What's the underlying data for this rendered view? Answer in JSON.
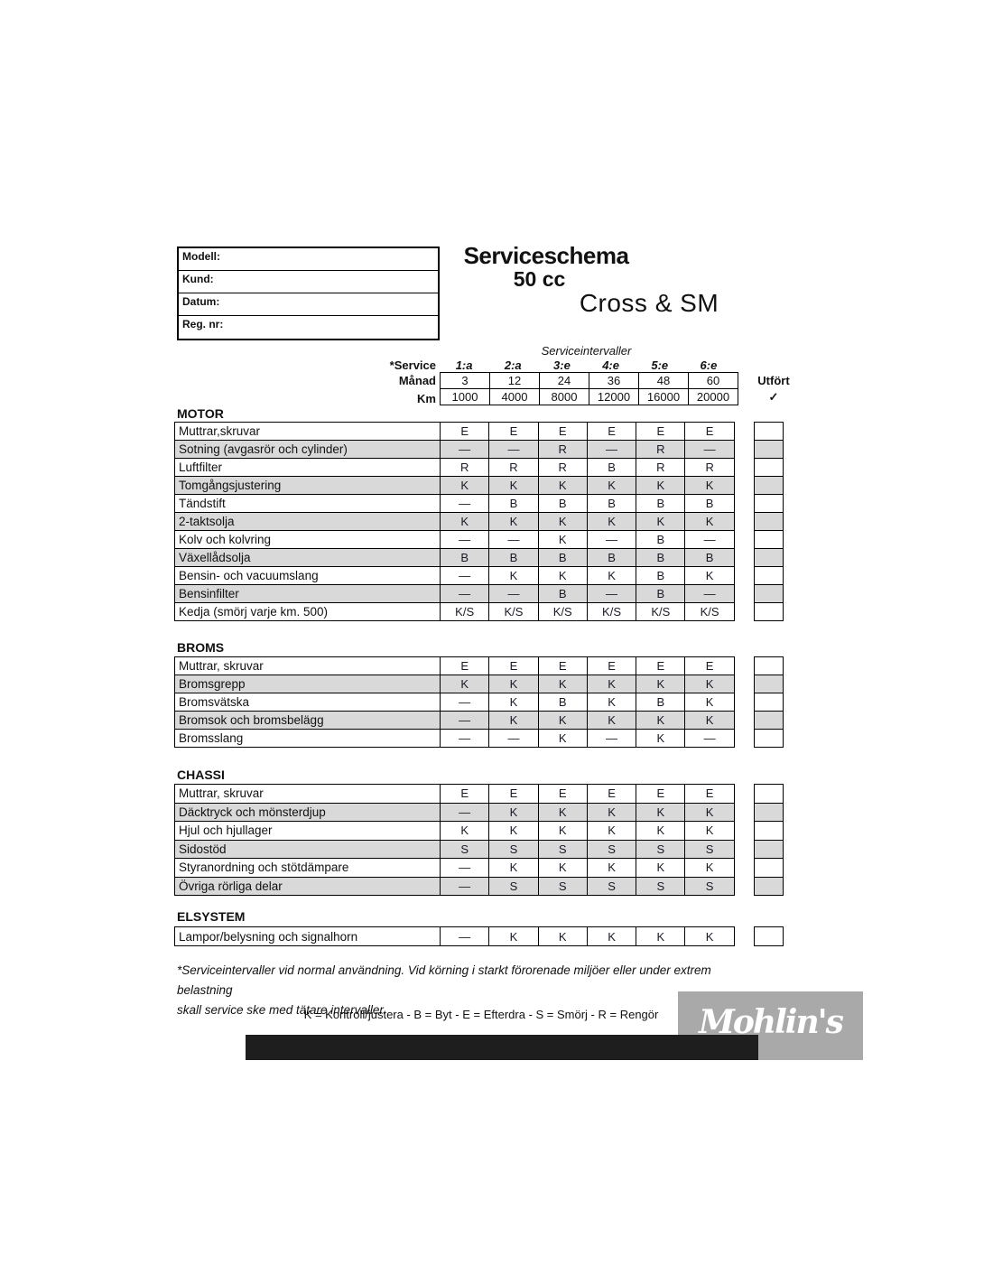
{
  "form": {
    "fields": [
      "Modell:",
      "Kund:",
      "Datum:",
      "Reg. nr:"
    ]
  },
  "title": {
    "line1": "Serviceschema",
    "line2": "50 cc",
    "line3": "Cross & SM"
  },
  "intervals": {
    "caption": "Serviceintervaller",
    "service_label": "*Service",
    "columns": [
      "1:a",
      "2:a",
      "3:e",
      "4:e",
      "5:e",
      "6:e"
    ],
    "manad_label": "Månad",
    "manad": [
      "3",
      "12",
      "24",
      "36",
      "48",
      "60"
    ],
    "km_label": "Km",
    "km": [
      "1000",
      "4000",
      "8000",
      "12000",
      "16000",
      "20000"
    ],
    "utfort_label": "Utfört",
    "utfort_check": "✓"
  },
  "sections": [
    {
      "name": "MOTOR",
      "rows": [
        {
          "label": "Muttrar,skruvar",
          "values": [
            "E",
            "E",
            "E",
            "E",
            "E",
            "E"
          ]
        },
        {
          "label": "Sotning (avgasrör och cylinder)",
          "values": [
            "—",
            "—",
            "R",
            "—",
            "R",
            "—"
          ]
        },
        {
          "label": "Luftfilter",
          "values": [
            "R",
            "R",
            "R",
            "B",
            "R",
            "R"
          ]
        },
        {
          "label": "Tomgångsjustering",
          "values": [
            "K",
            "K",
            "K",
            "K",
            "K",
            "K"
          ]
        },
        {
          "label": "Tändstift",
          "values": [
            "—",
            "B",
            "B",
            "B",
            "B",
            "B"
          ]
        },
        {
          "label": "2-taktsolja",
          "values": [
            "K",
            "K",
            "K",
            "K",
            "K",
            "K"
          ]
        },
        {
          "label": "Kolv och kolvring",
          "values": [
            "—",
            "—",
            "K",
            "—",
            "B",
            "—"
          ]
        },
        {
          "label": "Växellådsolja",
          "values": [
            "B",
            "B",
            "B",
            "B",
            "B",
            "B"
          ]
        },
        {
          "label": "Bensin- och vacuumslang",
          "values": [
            "—",
            "K",
            "K",
            "K",
            "B",
            "K"
          ]
        },
        {
          "label": "Bensinfilter",
          "values": [
            "—",
            "—",
            "B",
            "—",
            "B",
            "—"
          ]
        },
        {
          "label": "Kedja (smörj varje km. 500)",
          "values": [
            "K/S",
            "K/S",
            "K/S",
            "K/S",
            "K/S",
            "K/S"
          ]
        }
      ]
    },
    {
      "name": "BROMS",
      "rows": [
        {
          "label": "Muttrar, skruvar",
          "values": [
            "E",
            "E",
            "E",
            "E",
            "E",
            "E"
          ]
        },
        {
          "label": "Bromsgrepp",
          "values": [
            "K",
            "K",
            "K",
            "K",
            "K",
            "K"
          ]
        },
        {
          "label": "Bromsvätska",
          "values": [
            "—",
            "K",
            "B",
            "K",
            "B",
            "K"
          ]
        },
        {
          "label": "Bromsok och bromsbelägg",
          "values": [
            "—",
            "K",
            "K",
            "K",
            "K",
            "K"
          ]
        },
        {
          "label": "Bromsslang",
          "values": [
            "—",
            "—",
            "K",
            "—",
            "K",
            "—"
          ]
        }
      ]
    },
    {
      "name": "CHASSI",
      "rows": [
        {
          "label": "Muttrar, skruvar",
          "values": [
            "E",
            "E",
            "E",
            "E",
            "E",
            "E"
          ]
        },
        {
          "label": "Däcktryck och mönsterdjup",
          "values": [
            "—",
            "K",
            "K",
            "K",
            "K",
            "K"
          ]
        },
        {
          "label": "Hjul och hjullager",
          "values": [
            "K",
            "K",
            "K",
            "K",
            "K",
            "K"
          ]
        },
        {
          "label": "Sidostöd",
          "values": [
            "S",
            "S",
            "S",
            "S",
            "S",
            "S"
          ]
        },
        {
          "label": "Styranordning och stötdämpare",
          "values": [
            "—",
            "K",
            "K",
            "K",
            "K",
            "K"
          ]
        },
        {
          "label": "Övriga rörliga delar",
          "values": [
            "—",
            "S",
            "S",
            "S",
            "S",
            "S"
          ]
        }
      ]
    },
    {
      "name": "ELSYSTEM",
      "rows": [
        {
          "label": "Lampor/belysning och signalhorn",
          "values": [
            "—",
            "K",
            "K",
            "K",
            "K",
            "K"
          ]
        }
      ]
    }
  ],
  "footnote": {
    "line1": "*Serviceintervaller vid normal användning. Vid körning i starkt förorenade miljöer eller under extrem belastning",
    "line2": "skall service ske med tätare intervaller."
  },
  "legend": "K = Kontroll/justera - B = Byt - E = Efterdra - S = Smörj - R = Rengör",
  "logo": "Mohlin's",
  "colors": {
    "row_shade": "#d9d9d9",
    "bar": "#1e1e1e",
    "logo_bg": "#a9a9a9"
  }
}
